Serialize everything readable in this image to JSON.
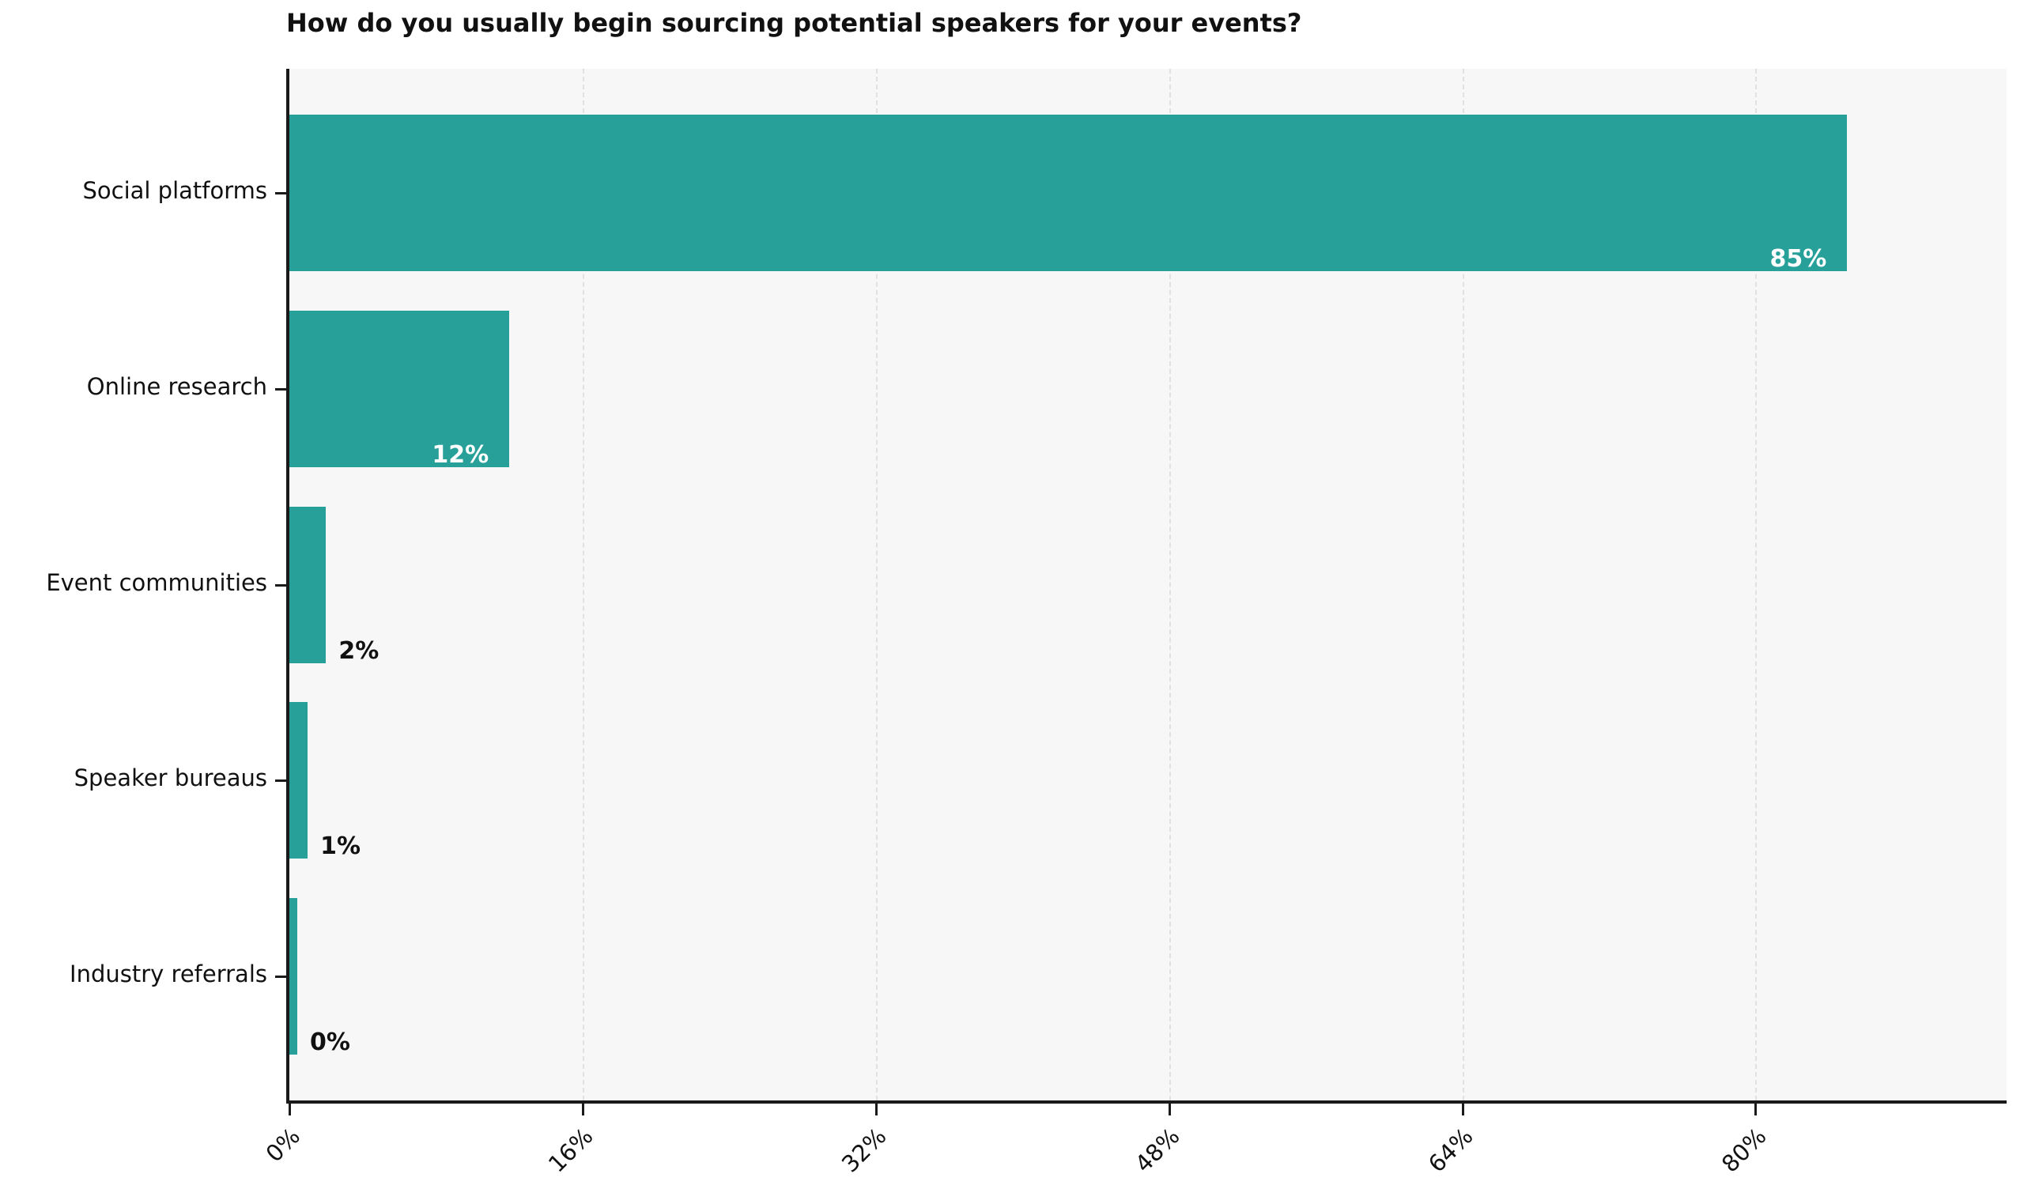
{
  "chart_data": {
    "type": "bar",
    "orientation": "horizontal",
    "title": "How do you usually begin sourcing potential speakers for your events?",
    "categories": [
      "Social platforms",
      "Online research",
      "Event communities",
      "Speaker bureaus",
      "Industry referrals"
    ],
    "values": [
      85,
      12,
      2,
      1,
      0
    ],
    "value_labels": [
      "85%",
      "12%",
      "2%",
      "1%",
      "0%"
    ],
    "xlabel": "",
    "ylabel": "",
    "x_tick_values": [
      0,
      16,
      32,
      48,
      64,
      80
    ],
    "x_tick_labels": [
      "0%",
      "16%",
      "32%",
      "48%",
      "64%",
      "80%"
    ],
    "xlim": [
      0,
      93.7
    ],
    "grid": "vertical dashed",
    "legend": "none",
    "x_tick_rotation_deg": 45,
    "colors": {
      "bar": "#26a099",
      "plot_background": "#f7f7f7",
      "figure_background": "#ffffff",
      "grid": "#e1e1e1",
      "spine": "#1a1a1a",
      "inside_value_label": "#ffffff",
      "outside_value_label": "#111111",
      "text": "#111111"
    }
  }
}
